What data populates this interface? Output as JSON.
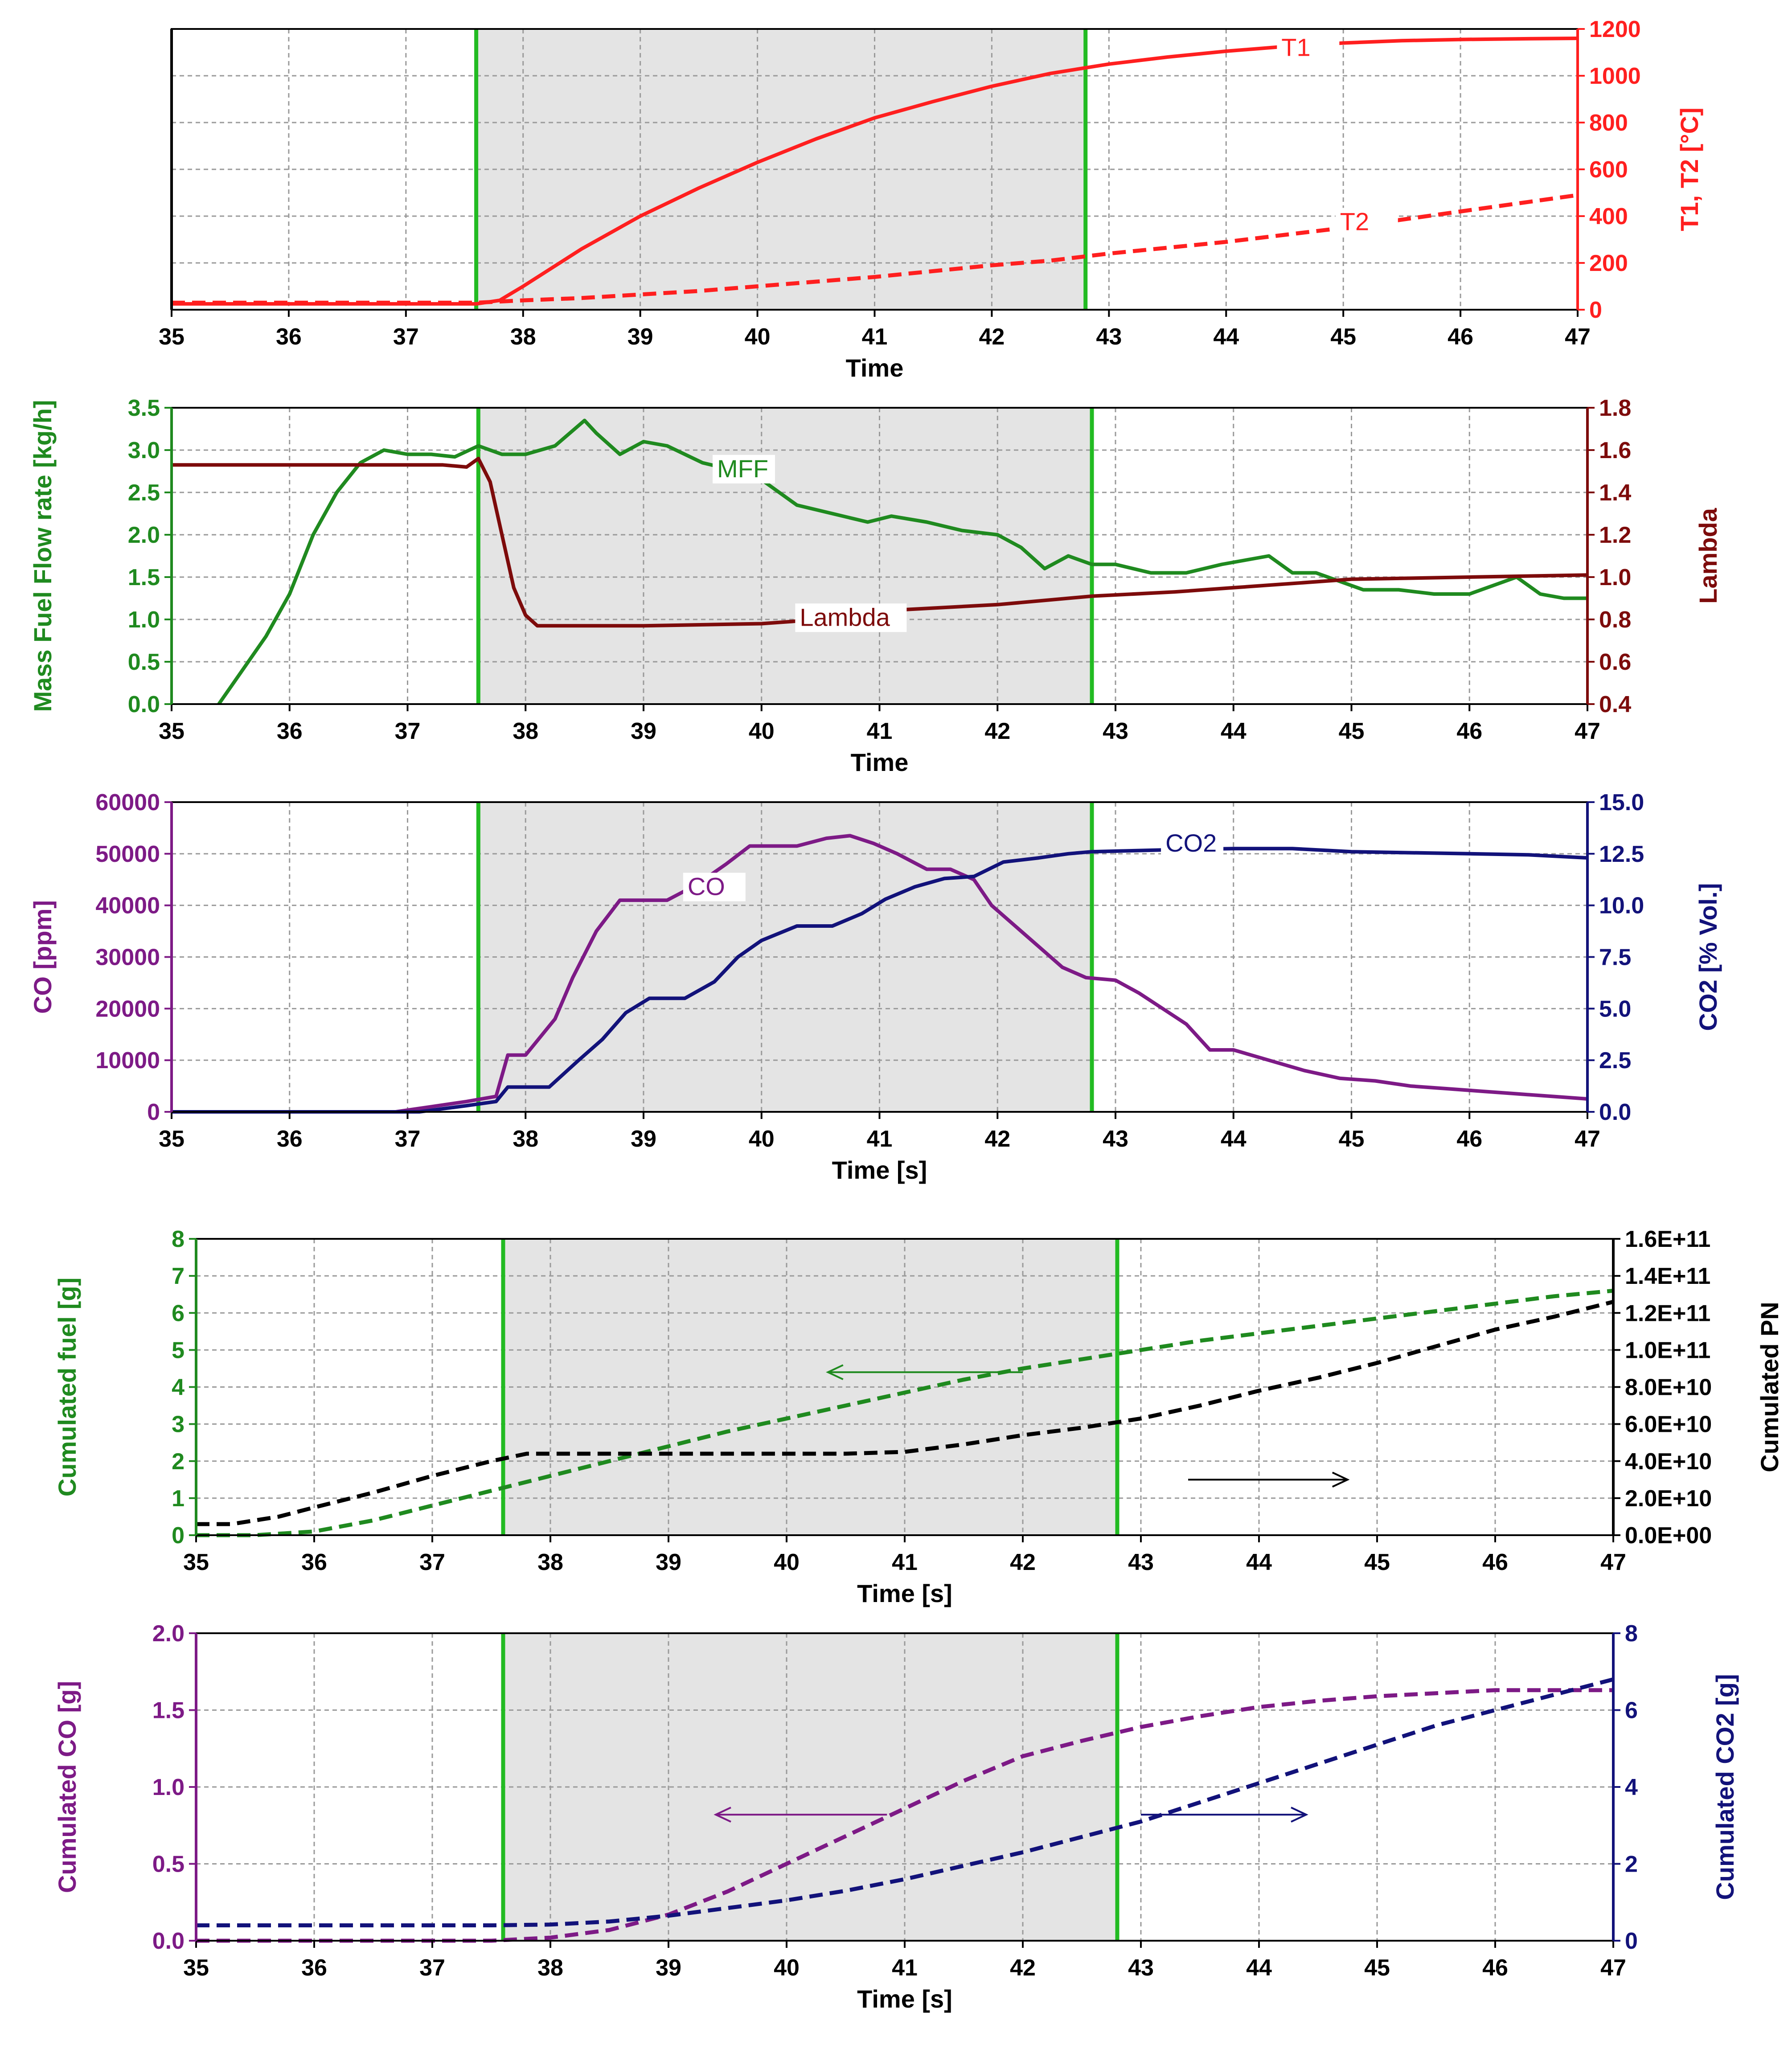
{
  "colors": {
    "shade": "#e4e4e4",
    "marker": "#22bb22",
    "grid": "#9a9a9a",
    "red": "#ff1f1f",
    "darkgreen": "#1f8a1f",
    "maroon": "#7d0b0b",
    "purple": "#7d1a86",
    "navy": "#12127a",
    "black": "#000000"
  },
  "chart_data": [
    {
      "id": "temp",
      "type": "line",
      "xlabel": "Time",
      "left_ylabel": "",
      "right_ylabel": "T1, T2 [°C]",
      "xlim": [
        35,
        47
      ],
      "xticks": [
        35,
        36,
        37,
        38,
        39,
        40,
        41,
        42,
        43,
        44,
        45,
        46,
        47
      ],
      "left_ylim": [
        0,
        1200
      ],
      "left_ticks": [],
      "right_ylim": [
        0,
        1200
      ],
      "right_ticks": [
        "0",
        "200",
        "400",
        "600",
        "800",
        "1000",
        "1200"
      ],
      "right_tick_values": [
        0,
        200,
        400,
        600,
        800,
        1000,
        1200
      ],
      "left_color": "black",
      "right_color": "red",
      "shade": [
        37.6,
        42.8
      ],
      "series": [
        {
          "name": "T1",
          "axis": "right",
          "color": "red",
          "dash": false,
          "x": [
            35,
            37.6,
            37.8,
            38,
            38.5,
            39,
            39.5,
            40,
            40.5,
            41,
            41.5,
            42,
            42.5,
            43,
            43.5,
            44,
            44.5,
            45,
            45.5,
            46,
            46.5,
            47
          ],
          "y": [
            25,
            25,
            40,
            100,
            260,
            400,
            520,
            630,
            730,
            820,
            890,
            955,
            1010,
            1050,
            1080,
            1105,
            1125,
            1140,
            1150,
            1155,
            1158,
            1160
          ]
        },
        {
          "name": "T2",
          "axis": "right",
          "color": "red",
          "dash": true,
          "x": [
            35,
            37.6,
            38,
            38.5,
            39,
            39.5,
            40,
            40.5,
            41,
            41.5,
            42,
            42.5,
            43,
            43.5,
            44,
            44.5,
            45,
            45.5,
            46,
            46.5,
            47
          ],
          "y": [
            30,
            30,
            40,
            50,
            65,
            80,
            100,
            120,
            140,
            165,
            190,
            210,
            240,
            265,
            290,
            320,
            350,
            385,
            420,
            455,
            490
          ]
        }
      ],
      "annotations": [
        {
          "text": "T1",
          "x": 44.7,
          "y": 1085,
          "axis": "right",
          "color": "red"
        },
        {
          "text": "T2",
          "x": 45.2,
          "y": 340,
          "axis": "right",
          "color": "red"
        }
      ],
      "arrows": []
    },
    {
      "id": "mff",
      "type": "line",
      "xlabel": "Time",
      "left_ylabel": "Mass Fuel Flow rate [kg/h]",
      "right_ylabel": "Lambda",
      "xlim": [
        35,
        47
      ],
      "xticks": [
        35,
        36,
        37,
        38,
        39,
        40,
        41,
        42,
        43,
        44,
        45,
        46,
        47
      ],
      "left_ylim": [
        0,
        3.5
      ],
      "left_ticks": [
        "0.0",
        "0.5",
        "1.0",
        "1.5",
        "2.0",
        "2.5",
        "3.0",
        "3.5"
      ],
      "left_tick_values": [
        0,
        0.5,
        1,
        1.5,
        2,
        2.5,
        3,
        3.5
      ],
      "right_ylim": [
        0.4,
        1.8
      ],
      "right_ticks": [
        "0.4",
        "0.6",
        "0.8",
        "1.0",
        "1.2",
        "1.4",
        "1.6",
        "1.8"
      ],
      "right_tick_values": [
        0.4,
        0.6,
        0.8,
        1.0,
        1.2,
        1.4,
        1.6,
        1.8
      ],
      "left_color": "darkgreen",
      "right_color": "maroon",
      "shade": [
        37.6,
        42.8
      ],
      "series": [
        {
          "name": "MFF",
          "axis": "left",
          "color": "darkgreen",
          "dash": false,
          "x": [
            35.4,
            35.6,
            35.8,
            36,
            36.2,
            36.4,
            36.6,
            36.8,
            37,
            37.2,
            37.4,
            37.6,
            37.8,
            38,
            38.25,
            38.5,
            38.6,
            38.8,
            39,
            39.2,
            39.5,
            39.8,
            40,
            40.3,
            40.6,
            40.9,
            41.1,
            41.4,
            41.7,
            42,
            42.2,
            42.4,
            42.6,
            42.8,
            43,
            43.3,
            43.6,
            43.9,
            44.1,
            44.3,
            44.5,
            44.7,
            44.9,
            45.1,
            45.4,
            45.7,
            46,
            46.2,
            46.4,
            46.6,
            46.8,
            47
          ],
          "y": [
            0.0,
            0.4,
            0.8,
            1.3,
            2.0,
            2.5,
            2.85,
            3.0,
            2.95,
            2.95,
            2.92,
            3.05,
            2.95,
            2.95,
            3.05,
            3.35,
            3.2,
            2.95,
            3.1,
            3.05,
            2.85,
            2.75,
            2.65,
            2.35,
            2.25,
            2.15,
            2.22,
            2.15,
            2.05,
            2.0,
            1.85,
            1.6,
            1.75,
            1.65,
            1.65,
            1.55,
            1.55,
            1.65,
            1.7,
            1.75,
            1.55,
            1.55,
            1.45,
            1.35,
            1.35,
            1.3,
            1.3,
            1.4,
            1.5,
            1.3,
            1.25,
            1.25
          ]
        },
        {
          "name": "Lambda",
          "axis": "right",
          "color": "maroon",
          "dash": false,
          "x": [
            35,
            37.3,
            37.5,
            37.6,
            37.7,
            37.8,
            37.9,
            38.0,
            38.1,
            38.3,
            39,
            40,
            40.5,
            41,
            42,
            42.8,
            43.5,
            44,
            45,
            46,
            47
          ],
          "y": [
            1.53,
            1.53,
            1.52,
            1.56,
            1.45,
            1.2,
            0.95,
            0.82,
            0.77,
            0.77,
            0.77,
            0.78,
            0.8,
            0.84,
            0.87,
            0.91,
            0.93,
            0.95,
            0.99,
            1.0,
            1.01
          ]
        }
      ],
      "annotations": [
        {
          "text": "MFF",
          "x": 39.85,
          "y": 2.68,
          "axis": "left",
          "color": "darkgreen"
        },
        {
          "text": "Lambda",
          "x": 40.55,
          "y": 0.77,
          "axis": "right",
          "color": "maroon"
        }
      ],
      "arrows": []
    },
    {
      "id": "co",
      "type": "line",
      "xlabel": "Time [s]",
      "left_ylabel": "CO [ppm]",
      "right_ylabel": "CO2 [% Vol.]",
      "xlim": [
        35,
        47
      ],
      "xticks": [
        35,
        36,
        37,
        38,
        39,
        40,
        41,
        42,
        43,
        44,
        45,
        46,
        47
      ],
      "left_ylim": [
        0,
        60000
      ],
      "left_ticks": [
        "0",
        "10000",
        "20000",
        "30000",
        "40000",
        "50000",
        "60000"
      ],
      "left_tick_values": [
        0,
        10000,
        20000,
        30000,
        40000,
        50000,
        60000
      ],
      "right_ylim": [
        0,
        15
      ],
      "right_ticks": [
        "0.0",
        "2.5",
        "5.0",
        "7.5",
        "10.0",
        "12.5",
        "15.0"
      ],
      "right_tick_values": [
        0,
        2.5,
        5,
        7.5,
        10,
        12.5,
        15
      ],
      "left_color": "purple",
      "right_color": "navy",
      "shade": [
        37.6,
        42.8
      ],
      "series": [
        {
          "name": "CO",
          "axis": "left",
          "color": "purple",
          "dash": false,
          "x": [
            35,
            36.9,
            37.2,
            37.5,
            37.75,
            37.85,
            38,
            38.25,
            38.4,
            38.6,
            38.8,
            38.95,
            39.2,
            39.45,
            39.7,
            39.9,
            40.1,
            40.3,
            40.55,
            40.75,
            40.95,
            41.15,
            41.4,
            41.6,
            41.8,
            41.95,
            42.15,
            42.35,
            42.55,
            42.75,
            43.0,
            43.2,
            43.4,
            43.6,
            43.8,
            44.0,
            44.3,
            44.6,
            44.9,
            45.2,
            45.5,
            45.8,
            46.1,
            46.4,
            46.7,
            47
          ],
          "y": [
            0,
            0,
            1000,
            2000,
            3000,
            11000,
            11000,
            18000,
            26000,
            35000,
            41000,
            41000,
            41000,
            44000,
            48000,
            51500,
            51500,
            51500,
            53000,
            53500,
            52000,
            50000,
            47000,
            47000,
            45000,
            40000,
            36000,
            32000,
            28000,
            26000,
            25500,
            23000,
            20000,
            17000,
            12000,
            12000,
            10000,
            8000,
            6500,
            6000,
            5000,
            4500,
            4000,
            3500,
            3000,
            2500
          ]
        },
        {
          "name": "CO2",
          "axis": "right",
          "color": "navy",
          "dash": false,
          "x": [
            35,
            37.1,
            37.5,
            37.75,
            37.85,
            38.2,
            38.45,
            38.65,
            38.85,
            39.05,
            39.35,
            39.6,
            39.8,
            40.0,
            40.3,
            40.6,
            40.85,
            41.05,
            41.3,
            41.55,
            41.8,
            42.05,
            42.35,
            42.6,
            42.8,
            43.5,
            44,
            44.5,
            45,
            46,
            46.5,
            47
          ],
          "y": [
            0,
            0,
            0.3,
            0.5,
            1.2,
            1.2,
            2.5,
            3.5,
            4.8,
            5.5,
            5.5,
            6.3,
            7.5,
            8.3,
            9.0,
            9.0,
            9.6,
            10.3,
            10.9,
            11.3,
            11.4,
            12.1,
            12.3,
            12.5,
            12.6,
            12.7,
            12.75,
            12.75,
            12.6,
            12.5,
            12.45,
            12.3
          ]
        }
      ],
      "annotations": [
        {
          "text": "CO",
          "x": 39.6,
          "y": 42000,
          "axis": "left",
          "color": "purple"
        },
        {
          "text": "CO2",
          "x": 43.65,
          "y": 12.6,
          "axis": "right",
          "color": "navy"
        }
      ],
      "arrows": []
    },
    {
      "id": "cumfuel",
      "type": "line",
      "xlabel": "Time [s]",
      "left_ylabel": "Cumulated fuel [g]",
      "right_ylabel": "Cumulated PN",
      "xlim": [
        35,
        47
      ],
      "xticks": [
        35,
        36,
        37,
        38,
        39,
        40,
        41,
        42,
        43,
        44,
        45,
        46,
        47
      ],
      "left_ylim": [
        0,
        8
      ],
      "left_ticks": [
        "0",
        "1",
        "2",
        "3",
        "4",
        "5",
        "6",
        "7",
        "8"
      ],
      "left_tick_values": [
        0,
        1,
        2,
        3,
        4,
        5,
        6,
        7,
        8
      ],
      "right_ylim": [
        0,
        160000000000
      ],
      "right_ticks": [
        "0.0E+00",
        "2.0E+10",
        "4.0E+10",
        "6.0E+10",
        "8.0E+10",
        "1.0E+11",
        "1.2E+11",
        "1.4E+11",
        "1.6E+11"
      ],
      "right_tick_values": [
        0,
        20000000000,
        40000000000,
        60000000000,
        80000000000,
        100000000000,
        120000000000,
        140000000000,
        160000000000
      ],
      "left_color": "darkgreen",
      "right_color": "black",
      "shade": [
        37.6,
        42.8
      ],
      "series": [
        {
          "name": "Cumulated fuel",
          "axis": "left",
          "color": "darkgreen",
          "dash": true,
          "x": [
            35,
            35.5,
            36,
            36.5,
            37,
            37.5,
            38,
            38.5,
            39,
            39.5,
            40,
            40.5,
            41,
            41.5,
            42,
            42.5,
            43,
            43.5,
            44,
            44.5,
            45,
            45.5,
            46,
            46.5,
            47
          ],
          "y": [
            0,
            0,
            0.1,
            0.4,
            0.8,
            1.2,
            1.6,
            2.0,
            2.4,
            2.8,
            3.15,
            3.5,
            3.85,
            4.2,
            4.5,
            4.75,
            5.0,
            5.25,
            5.45,
            5.65,
            5.85,
            6.05,
            6.25,
            6.45,
            6.6
          ]
        },
        {
          "name": "Cumulated PN",
          "axis": "right",
          "color": "black",
          "dash": true,
          "x": [
            35,
            35.3,
            35.7,
            36,
            36.5,
            37,
            37.5,
            37.8,
            38,
            38.5,
            39,
            39.5,
            40,
            40.5,
            41,
            41.5,
            42,
            42.5,
            43,
            43.5,
            44,
            44.5,
            45,
            45.5,
            46,
            46.5,
            47
          ],
          "y": [
            6000000000,
            6000000000,
            10000000000,
            15000000000,
            23000000000,
            32000000000,
            40000000000,
            44000000000,
            44000000000,
            44000000000,
            44000000000,
            44000000000,
            44000000000,
            44000000000,
            45000000000,
            49000000000,
            54000000000,
            58000000000,
            63000000000,
            70000000000,
            78000000000,
            85000000000,
            93000000000,
            102000000000,
            111000000000,
            118000000000,
            126000000000
          ]
        }
      ],
      "annotations": [],
      "arrows": [
        {
          "x1": 42.0,
          "x2": 40.35,
          "y": 4.4,
          "axis": "left",
          "color": "darkgreen"
        },
        {
          "x1": 43.4,
          "x2": 44.75,
          "y": 1.5,
          "axis": "left",
          "color": "black"
        }
      ]
    },
    {
      "id": "cumco",
      "type": "line",
      "xlabel": "Time [s]",
      "left_ylabel": "Cumulated CO [g]",
      "right_ylabel": "Cumulated CO2 [g]",
      "xlim": [
        35,
        47
      ],
      "xticks": [
        35,
        36,
        37,
        38,
        39,
        40,
        41,
        42,
        43,
        44,
        45,
        46,
        47
      ],
      "left_ylim": [
        0,
        2
      ],
      "left_ticks": [
        "0.0",
        "0.5",
        "1.0",
        "1.5",
        "2.0"
      ],
      "left_tick_values": [
        0,
        0.5,
        1,
        1.5,
        2
      ],
      "right_ylim": [
        0,
        8
      ],
      "right_ticks": [
        "0",
        "2",
        "4",
        "6",
        "8"
      ],
      "right_tick_values": [
        0,
        2,
        4,
        6,
        8
      ],
      "left_color": "purple",
      "right_color": "navy",
      "shade": [
        37.6,
        42.8
      ],
      "series": [
        {
          "name": "Cumulated CO",
          "axis": "left",
          "color": "purple",
          "dash": true,
          "x": [
            35,
            37.5,
            38,
            38.5,
            39,
            39.5,
            40,
            40.5,
            41,
            41.5,
            42,
            42.5,
            43,
            43.5,
            44,
            44.5,
            45,
            45.5,
            46,
            46.5,
            47
          ],
          "y": [
            0,
            0,
            0.02,
            0.07,
            0.17,
            0.32,
            0.5,
            0.68,
            0.86,
            1.04,
            1.2,
            1.3,
            1.39,
            1.46,
            1.52,
            1.56,
            1.59,
            1.61,
            1.63,
            1.63,
            1.63
          ]
        },
        {
          "name": "Cumulated CO2",
          "axis": "right",
          "color": "navy",
          "dash": true,
          "x": [
            35,
            37.5,
            38,
            38.5,
            39,
            39.5,
            40,
            40.5,
            41,
            41.5,
            42,
            42.5,
            43,
            43.5,
            44,
            44.5,
            45,
            45.5,
            46,
            46.5,
            47
          ],
          "y": [
            0.4,
            0.4,
            0.42,
            0.5,
            0.65,
            0.85,
            1.05,
            1.3,
            1.6,
            1.95,
            2.3,
            2.7,
            3.1,
            3.6,
            4.1,
            4.6,
            5.1,
            5.6,
            6.0,
            6.4,
            6.8
          ]
        }
      ],
      "annotations": [],
      "arrows": [
        {
          "x1": 40.85,
          "x2": 39.4,
          "y": 0.82,
          "axis": "left",
          "color": "purple"
        },
        {
          "x1": 43.0,
          "x2": 44.4,
          "y": 0.82,
          "axis": "left",
          "color": "navy"
        }
      ]
    }
  ]
}
